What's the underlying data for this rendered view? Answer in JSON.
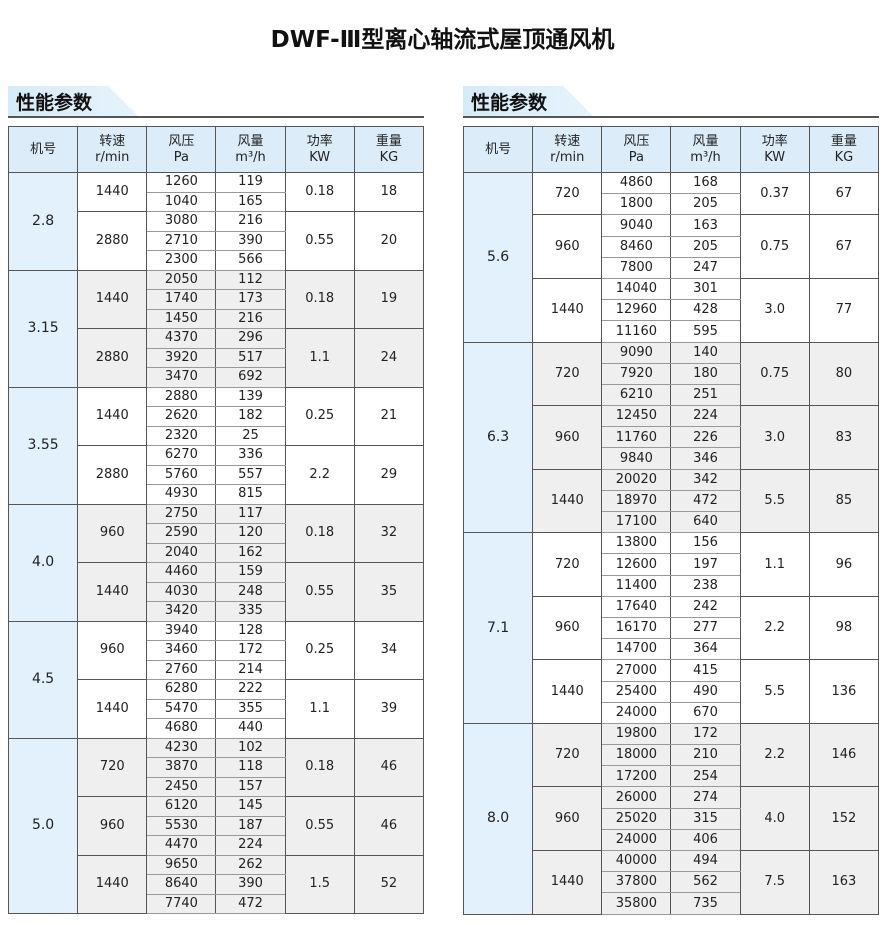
{
  "title": "DWF-Ⅲ型离心轴流式屋顶通风机",
  "section_label": "性能参数",
  "headers": [
    [
      "机号",
      ""
    ],
    [
      "转速",
      "r/min"
    ],
    [
      "风压",
      "Pa"
    ],
    [
      "风量",
      "m³/h"
    ],
    [
      "功率",
      "KW"
    ],
    [
      "重量",
      "KG"
    ]
  ],
  "colors": {
    "header_bg": "#dcedf9",
    "model_bg": "#e2f1fb",
    "alt_group_bg": "#efefef"
  },
  "tables": [
    [
      {
        "model": "2.8",
        "speeds": [
          {
            "rpm": "1440",
            "kw": "0.18",
            "kg": "18",
            "rows": [
              [
                "1260",
                "119"
              ],
              [
                "1040",
                "165"
              ]
            ]
          },
          {
            "rpm": "2880",
            "kw": "0.55",
            "kg": "20",
            "rows": [
              [
                "3080",
                "216"
              ],
              [
                "2710",
                "390"
              ],
              [
                "2300",
                "566"
              ]
            ]
          }
        ]
      },
      {
        "model": "3.15",
        "speeds": [
          {
            "rpm": "1440",
            "kw": "0.18",
            "kg": "19",
            "rows": [
              [
                "2050",
                "112"
              ],
              [
                "1740",
                "173"
              ],
              [
                "1450",
                "216"
              ]
            ]
          },
          {
            "rpm": "2880",
            "kw": "1.1",
            "kg": "24",
            "rows": [
              [
                "4370",
                "296"
              ],
              [
                "3920",
                "517"
              ],
              [
                "3470",
                "692"
              ]
            ]
          }
        ]
      },
      {
        "model": "3.55",
        "speeds": [
          {
            "rpm": "1440",
            "kw": "0.25",
            "kg": "21",
            "rows": [
              [
                "2880",
                "139"
              ],
              [
                "2620",
                "182"
              ],
              [
                "2320",
                "25"
              ]
            ]
          },
          {
            "rpm": "2880",
            "kw": "2.2",
            "kg": "29",
            "rows": [
              [
                "6270",
                "336"
              ],
              [
                "5760",
                "557"
              ],
              [
                "4930",
                "815"
              ]
            ]
          }
        ]
      },
      {
        "model": "4.0",
        "speeds": [
          {
            "rpm": "960",
            "kw": "0.18",
            "kg": "32",
            "rows": [
              [
                "2750",
                "117"
              ],
              [
                "2590",
                "120"
              ],
              [
                "2040",
                "162"
              ]
            ]
          },
          {
            "rpm": "1440",
            "kw": "0.55",
            "kg": "35",
            "rows": [
              [
                "4460",
                "159"
              ],
              [
                "4030",
                "248"
              ],
              [
                "3420",
                "335"
              ]
            ]
          }
        ]
      },
      {
        "model": "4.5",
        "speeds": [
          {
            "rpm": "960",
            "kw": "0.25",
            "kg": "34",
            "rows": [
              [
                "3940",
                "128"
              ],
              [
                "3460",
                "172"
              ],
              [
                "2760",
                "214"
              ]
            ]
          },
          {
            "rpm": "1440",
            "kw": "1.1",
            "kg": "39",
            "rows": [
              [
                "6280",
                "222"
              ],
              [
                "5470",
                "355"
              ],
              [
                "4680",
                "440"
              ]
            ]
          }
        ]
      },
      {
        "model": "5.0",
        "speeds": [
          {
            "rpm": "720",
            "kw": "0.18",
            "kg": "46",
            "rows": [
              [
                "4230",
                "102"
              ],
              [
                "3870",
                "118"
              ],
              [
                "2450",
                "157"
              ]
            ]
          },
          {
            "rpm": "960",
            "kw": "0.55",
            "kg": "46",
            "rows": [
              [
                "6120",
                "145"
              ],
              [
                "5530",
                "187"
              ],
              [
                "4470",
                "224"
              ]
            ]
          },
          {
            "rpm": "1440",
            "kw": "1.5",
            "kg": "52",
            "rows": [
              [
                "9650",
                "262"
              ],
              [
                "8640",
                "390"
              ],
              [
                "7740",
                "472"
              ]
            ]
          }
        ]
      }
    ],
    [
      {
        "model": "5.6",
        "speeds": [
          {
            "rpm": "720",
            "kw": "0.37",
            "kg": "67",
            "rows": [
              [
                "4860",
                "168"
              ],
              [
                "1800",
                "205"
              ]
            ]
          },
          {
            "rpm": "960",
            "kw": "0.75",
            "kg": "67",
            "rows": [
              [
                "9040",
                "163"
              ],
              [
                "8460",
                "205"
              ],
              [
                "7800",
                "247"
              ]
            ]
          },
          {
            "rpm": "1440",
            "kw": "3.0",
            "kg": "77",
            "rows": [
              [
                "14040",
                "301"
              ],
              [
                "12960",
                "428"
              ],
              [
                "11160",
                "595"
              ]
            ]
          }
        ]
      },
      {
        "model": "6.3",
        "speeds": [
          {
            "rpm": "720",
            "kw": "0.75",
            "kg": "80",
            "rows": [
              [
                "9090",
                "140"
              ],
              [
                "7920",
                "180"
              ],
              [
                "6210",
                "251"
              ]
            ]
          },
          {
            "rpm": "960",
            "kw": "3.0",
            "kg": "83",
            "rows": [
              [
                "12450",
                "224"
              ],
              [
                "11760",
                "226"
              ],
              [
                "9840",
                "346"
              ]
            ]
          },
          {
            "rpm": "1440",
            "kw": "5.5",
            "kg": "85",
            "rows": [
              [
                "20020",
                "342"
              ],
              [
                "18970",
                "472"
              ],
              [
                "17100",
                "640"
              ]
            ]
          }
        ]
      },
      {
        "model": "7.1",
        "speeds": [
          {
            "rpm": "720",
            "kw": "1.1",
            "kg": "96",
            "rows": [
              [
                "13800",
                "156"
              ],
              [
                "12600",
                "197"
              ],
              [
                "11400",
                "238"
              ]
            ]
          },
          {
            "rpm": "960",
            "kw": "2.2",
            "kg": "98",
            "rows": [
              [
                "17640",
                "242"
              ],
              [
                "16170",
                "277"
              ],
              [
                "14700",
                "364"
              ]
            ]
          },
          {
            "rpm": "1440",
            "kw": "5.5",
            "kg": "136",
            "rows": [
              [
                "27000",
                "415"
              ],
              [
                "25400",
                "490"
              ],
              [
                "24000",
                "670"
              ]
            ]
          }
        ]
      },
      {
        "model": "8.0",
        "speeds": [
          {
            "rpm": "720",
            "kw": "2.2",
            "kg": "146",
            "rows": [
              [
                "19800",
                "172"
              ],
              [
                "18000",
                "210"
              ],
              [
                "17200",
                "254"
              ]
            ]
          },
          {
            "rpm": "960",
            "kw": "4.0",
            "kg": "152",
            "rows": [
              [
                "26000",
                "274"
              ],
              [
                "25020",
                "315"
              ],
              [
                "24000",
                "406"
              ]
            ]
          },
          {
            "rpm": "1440",
            "kw": "7.5",
            "kg": "163",
            "rows": [
              [
                "40000",
                "494"
              ],
              [
                "37800",
                "562"
              ],
              [
                "35800",
                "735"
              ]
            ]
          }
        ]
      }
    ]
  ]
}
